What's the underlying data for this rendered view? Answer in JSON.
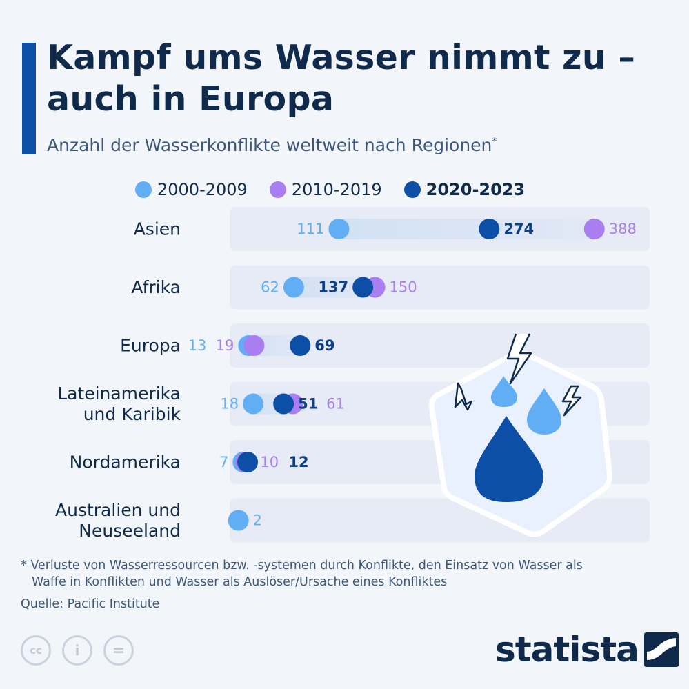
{
  "header": {
    "title": "Kampf ums Wasser nimmt zu – auch in Europa",
    "subtitle": "Anzahl der Wasserkonflikte weltweit nach Regionen",
    "subtitle_mark": "*"
  },
  "legend": [
    {
      "label": "2000-2009",
      "color": "#62aef5",
      "bold": false
    },
    {
      "label": "2010-2019",
      "color": "#a87ef0",
      "bold": false
    },
    {
      "label": "2020-2023",
      "color": "#0d4ea6",
      "bold": true
    }
  ],
  "chart_data": {
    "type": "dot",
    "categories": [
      "Asien",
      "Afrika",
      "Europa",
      "Lateinamerika und Karibik",
      "Nordamerika",
      "Australien und Neuseeland"
    ],
    "series": [
      {
        "name": "2000-2009",
        "color": "#62aef5",
        "values": [
          111,
          62,
          13,
          18,
          7,
          2
        ]
      },
      {
        "name": "2010-2019",
        "color": "#a87ef0",
        "values": [
          388,
          150,
          19,
          61,
          10,
          null
        ]
      },
      {
        "name": "2020-2023",
        "color": "#0d4ea6",
        "values": [
          274,
          137,
          69,
          51,
          12,
          null
        ]
      }
    ],
    "xlim": [
      0,
      430
    ]
  },
  "footnote": {
    "line1": "* Verluste von Wasserressourcen bzw. -systemen durch Konflikte, den Einsatz von Wasser als",
    "line2": "Waffe in Konflikten und Wasser als Auslöser/Ursache eines Konfliktes"
  },
  "source": "Quelle: Pacific Institute",
  "license_icons": [
    "cc-icon",
    "attribution-icon",
    "no-derivatives-icon"
  ],
  "license_labels": [
    "cc",
    "i",
    "="
  ],
  "brand": {
    "name": "statista"
  }
}
